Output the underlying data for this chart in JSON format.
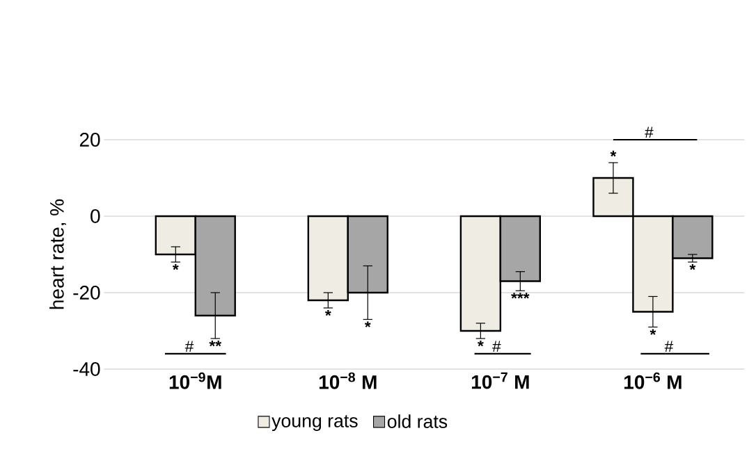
{
  "chart_data": {
    "type": "bar",
    "ylabel": "heart rate, %",
    "categories": [
      "10$^{−9}$M",
      "10$^{−8}$ M",
      "10$^{−7}$ M",
      "10$^{−6}$ M"
    ],
    "series": [
      {
        "name": "young rats",
        "color": "#efede3",
        "values": [
          -10,
          -22,
          -30,
          10
        ],
        "errors": [
          2,
          2,
          2,
          4
        ],
        "value_labels": [
          "*",
          "*",
          "*",
          "*"
        ]
      },
      {
        "color": "#efede3",
        "values": [
          null,
          null,
          null,
          -25
        ],
        "errors": [
          null,
          null,
          null,
          4
        ],
        "value_labels": [
          null,
          null,
          null,
          "*"
        ]
      },
      {
        "name": "old rats",
        "color": "#a6a6a6",
        "values": [
          -26,
          -20,
          -17,
          -11
        ],
        "errors": [
          6,
          7,
          2.5,
          1
        ],
        "value_labels": [
          "**",
          "*",
          "***",
          "*"
        ]
      }
    ],
    "annotations": [
      "#",
      "#",
      "#",
      "#"
    ],
    "ylim": [
      -40,
      20
    ],
    "yticks": [
      -40,
      -20,
      0,
      20
    ],
    "grid": "y",
    "legend": "bottom"
  }
}
